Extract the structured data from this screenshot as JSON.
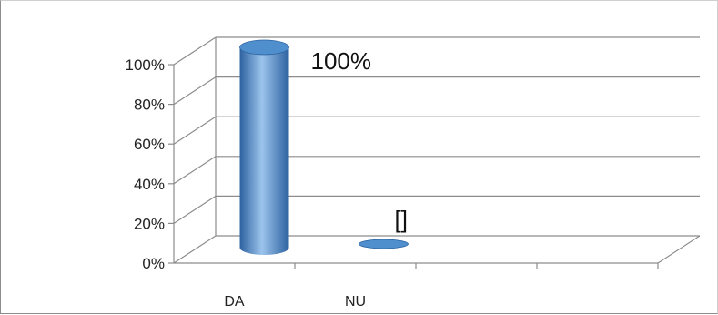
{
  "chart_data": {
    "type": "bar",
    "style": "3d-cylinder",
    "categories": [
      "DA",
      "NU"
    ],
    "values": [
      100,
      0
    ],
    "data_labels": [
      "100%",
      "[]"
    ],
    "ylim": [
      0,
      100
    ],
    "y_ticks": [
      "0%",
      "20%",
      "40%",
      "60%",
      "80%",
      "100%"
    ],
    "grid": true,
    "legend": "none",
    "colors": {
      "bar": "#4f8fce",
      "bar_dark": "#2d62a0",
      "bar_light": "#9cc4ec",
      "grid": "#8c8c8c"
    }
  }
}
